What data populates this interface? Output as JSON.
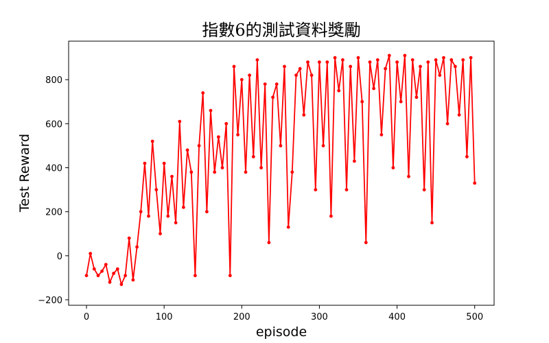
{
  "chart_data": {
    "type": "line",
    "title": "指數6的測試資料獎勵",
    "xlabel": "episode",
    "ylabel": "Test Reward",
    "xlim": [
      -23,
      525
    ],
    "ylim": [
      -225,
      975
    ],
    "xticks": [
      0,
      100,
      200,
      300,
      400,
      500
    ],
    "yticks": [
      -200,
      0,
      200,
      400,
      600,
      800
    ],
    "grid": false,
    "legend": "none",
    "series": [
      {
        "color": "#ff0000",
        "marker": "circle",
        "x": [
          0,
          5,
          10,
          15,
          20,
          25,
          30,
          35,
          40,
          45,
          50,
          55,
          60,
          65,
          70,
          75,
          80,
          85,
          90,
          95,
          100,
          105,
          110,
          115,
          120,
          125,
          130,
          135,
          140,
          145,
          150,
          155,
          160,
          165,
          170,
          175,
          180,
          185,
          190,
          195,
          200,
          205,
          210,
          215,
          220,
          225,
          230,
          235,
          240,
          245,
          250,
          255,
          260,
          265,
          270,
          275,
          280,
          285,
          290,
          295,
          300,
          305,
          310,
          315,
          320,
          325,
          330,
          335,
          340,
          345,
          350,
          355,
          360,
          365,
          370,
          375,
          380,
          385,
          390,
          395,
          400,
          405,
          410,
          415,
          420,
          425,
          430,
          435,
          440,
          445,
          450,
          455,
          460,
          465,
          470,
          475,
          480,
          485,
          490,
          495,
          500
        ],
        "y": [
          -90,
          10,
          -60,
          -90,
          -70,
          -40,
          -120,
          -80,
          -60,
          -130,
          -90,
          80,
          -110,
          40,
          200,
          420,
          180,
          520,
          300,
          100,
          420,
          180,
          360,
          150,
          610,
          220,
          480,
          380,
          -90,
          500,
          740,
          200,
          660,
          380,
          540,
          400,
          600,
          -90,
          860,
          550,
          800,
          380,
          820,
          450,
          890,
          400,
          780,
          60,
          720,
          780,
          500,
          860,
          130,
          380,
          820,
          850,
          640,
          880,
          820,
          300,
          880,
          500,
          880,
          180,
          900,
          750,
          890,
          300,
          860,
          430,
          900,
          700,
          60,
          880,
          760,
          890,
          550,
          850,
          910,
          400,
          880,
          700,
          910,
          360,
          890,
          720,
          860,
          300,
          880,
          150,
          890,
          820,
          900,
          600,
          890,
          860,
          640,
          890,
          450,
          900,
          330
        ]
      }
    ]
  }
}
